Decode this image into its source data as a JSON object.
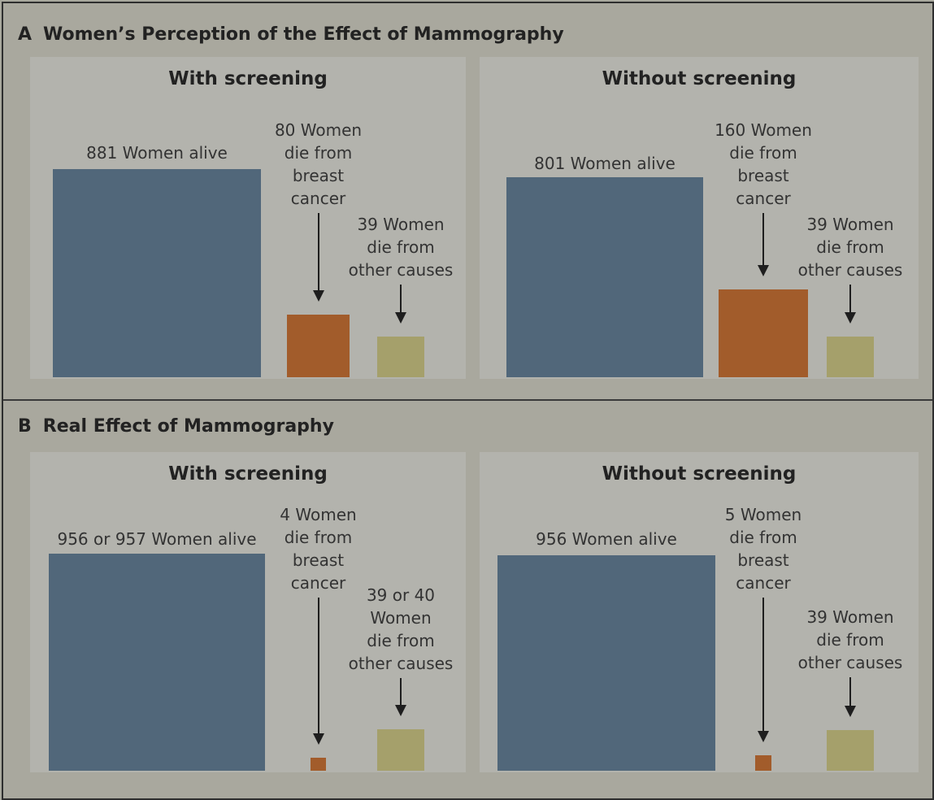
{
  "colors": {
    "alive": "#51677a",
    "breast_cancer": "#a25c2b",
    "other_causes": "#a5a06b",
    "panel_bg": "#b3b3ad",
    "figure_bg": "#a9a89e"
  },
  "sections": [
    {
      "letter": "A",
      "title": "Women’s Perception of the Effect of Mammography"
    },
    {
      "letter": "B",
      "title": "Real Effect of Mammography"
    }
  ],
  "chart_data": [
    {
      "type": "bar",
      "section": "A",
      "title": "With screening",
      "categories": [
        "Women alive",
        "Women die from breast cancer",
        "Women die from other causes"
      ],
      "values": [
        881,
        80,
        39
      ],
      "labels": [
        "881 Women alive",
        "80 Women\ndie from\nbreast\ncancer",
        "39 Women\ndie from\nother causes"
      ]
    },
    {
      "type": "bar",
      "section": "A",
      "title": "Without screening",
      "categories": [
        "Women alive",
        "Women die from breast cancer",
        "Women die from other causes"
      ],
      "values": [
        801,
        160,
        39
      ],
      "labels": [
        "801 Women alive",
        "160 Women\ndie from\nbreast\ncancer",
        "39 Women\ndie from\nother causes"
      ]
    },
    {
      "type": "bar",
      "section": "B",
      "title": "With screening",
      "categories": [
        "Women alive",
        "Women die from breast cancer",
        "Women die from other causes"
      ],
      "values": [
        956.5,
        4,
        39.5
      ],
      "labels": [
        "956 or 957 Women alive",
        "4 Women\ndie from\nbreast\ncancer",
        "39 or 40\nWomen\ndie from\nother causes"
      ]
    },
    {
      "type": "bar",
      "section": "B",
      "title": "Without screening",
      "categories": [
        "Women alive",
        "Women die from breast cancer",
        "Women die from other causes"
      ],
      "values": [
        956,
        5,
        39
      ],
      "labels": [
        "956 Women alive",
        "5 Women\ndie from\nbreast\ncancer",
        "39 Women\ndie from\nother causes"
      ]
    }
  ]
}
